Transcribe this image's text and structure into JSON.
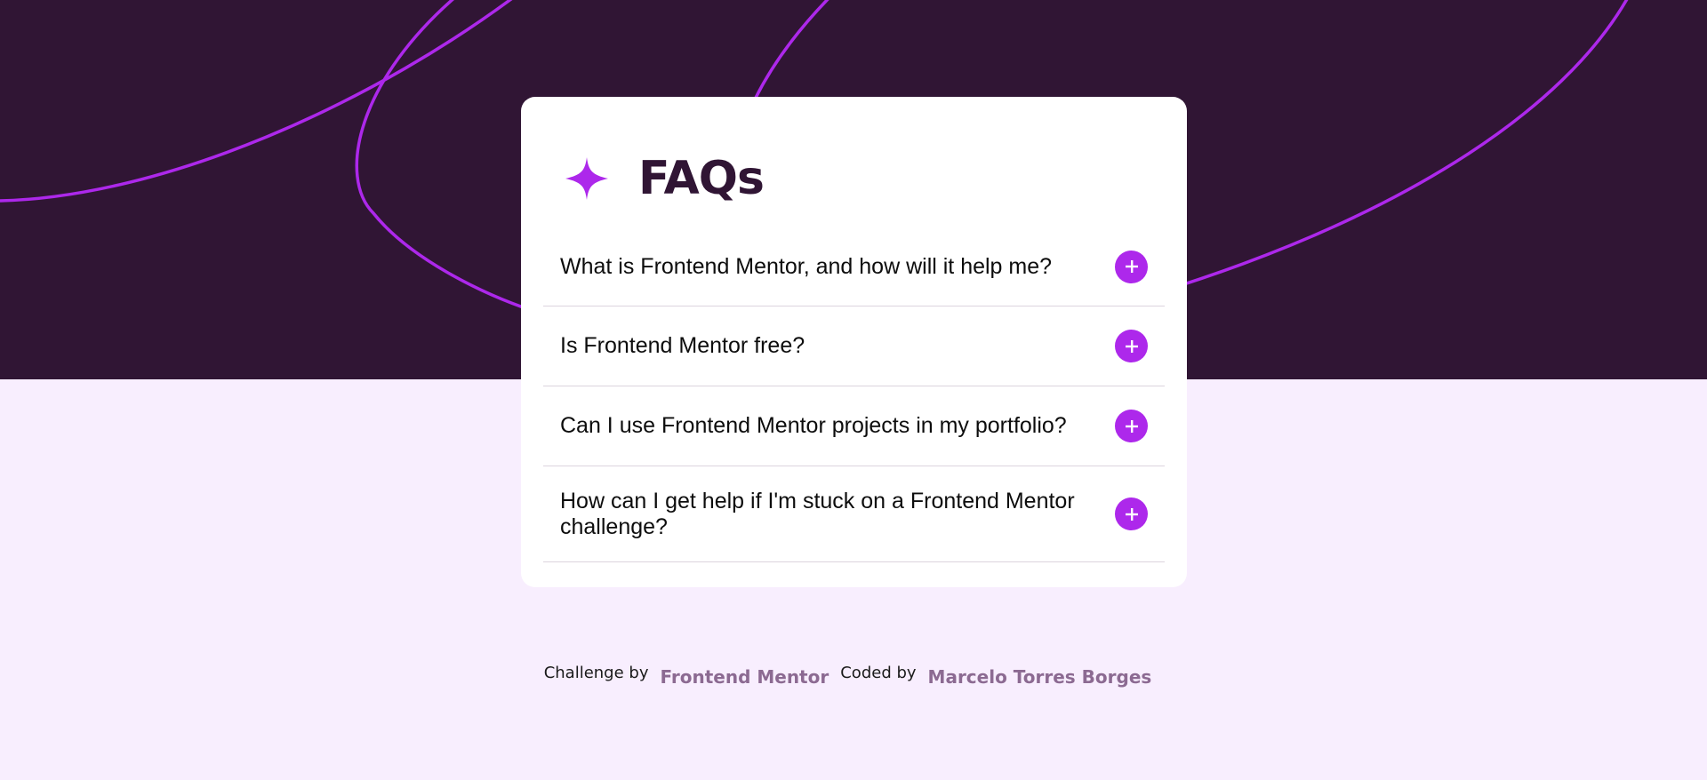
{
  "colors": {
    "hero_background": "#301534",
    "page_background": "#f8eefe",
    "accent": "#ad28eb",
    "title_color": "#301534",
    "link_color": "#8c6a92"
  },
  "header": {
    "icon": "star-icon",
    "title": "FAQs"
  },
  "faq": {
    "items": [
      {
        "question": "What is Frontend Mentor, and how will it help me?",
        "icon": "plus-icon",
        "expanded": false
      },
      {
        "question": "Is Frontend Mentor free?",
        "icon": "plus-icon",
        "expanded": false
      },
      {
        "question": "Can I use Frontend Mentor projects in my portfolio?",
        "icon": "plus-icon",
        "expanded": false
      },
      {
        "question": "How can I get help if I'm stuck on a Frontend Mentor challenge?",
        "icon": "plus-icon",
        "expanded": false
      }
    ]
  },
  "attribution": {
    "challenge_prefix": "Challenge by",
    "challenge_link": "Frontend Mentor",
    "coded_prefix": "Coded by",
    "coded_link": "Marcelo Torres Borges"
  }
}
